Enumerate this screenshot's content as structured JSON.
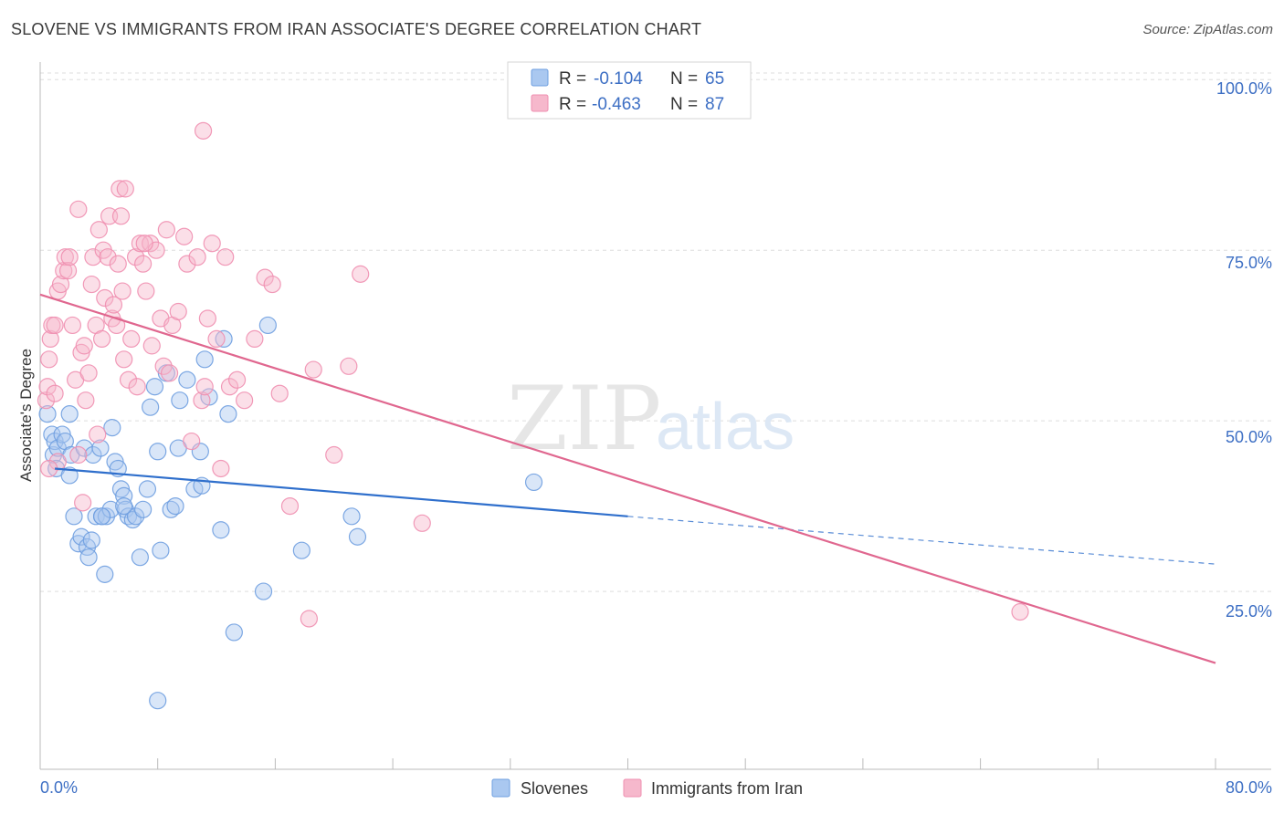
{
  "header": {
    "title": "SLOVENE VS IMMIGRANTS FROM IRAN ASSOCIATE'S DEGREE CORRELATION CHART",
    "source": "Source: ZipAtlas.com"
  },
  "watermark": {
    "zip": "ZIP",
    "atlas": "atlas"
  },
  "legend": {
    "rows": [
      {
        "r_label": "R =",
        "r_value": "-0.104",
        "n_label": "N =",
        "n_value": "65",
        "color": "#aac8f0"
      },
      {
        "r_label": "R =",
        "r_value": "-0.463",
        "n_label": "N =",
        "n_value": "87",
        "color": "#f6b8cc"
      }
    ]
  },
  "bottom_legend": {
    "items": [
      {
        "label": "Slovenes",
        "color": "#aac8f0"
      },
      {
        "label": "Immigrants from Iran",
        "color": "#f6b8cc"
      }
    ]
  },
  "chart_data": {
    "type": "scatter",
    "title": "SLOVENE VS IMMIGRANTS FROM IRAN ASSOCIATE'S DEGREE CORRELATION CHART",
    "xlabel": "",
    "ylabel": "Associate's Degree",
    "xlim": [
      0,
      80
    ],
    "ylim": [
      0,
      100
    ],
    "x_tick_labels": [
      "0.0%",
      "80.0%"
    ],
    "y_tick_labels": [
      "100.0%",
      "75.0%",
      "50.0%",
      "25.0%"
    ],
    "y_ticks": [
      100,
      75,
      50,
      25
    ],
    "grid": true,
    "legend_position": "top-center",
    "series": [
      {
        "name": "Slovenes",
        "color": "#6f9fe0",
        "fill": "#aac8f0",
        "trend": {
          "x0": 1,
          "y0": 43.0,
          "x1": 40,
          "y1": 36.0,
          "dash_to_x": 80,
          "dash_to_y": 29.0,
          "color": "#2f6fcc"
        },
        "points": [
          [
            0.5,
            51
          ],
          [
            0.8,
            48
          ],
          [
            0.9,
            45
          ],
          [
            1.0,
            47
          ],
          [
            1.2,
            46
          ],
          [
            1.5,
            48
          ],
          [
            1.7,
            47
          ],
          [
            2.0,
            51
          ],
          [
            2.1,
            45
          ],
          [
            1.1,
            43
          ],
          [
            2.3,
            36
          ],
          [
            2.6,
            32
          ],
          [
            2.8,
            33
          ],
          [
            3.0,
            46
          ],
          [
            3.2,
            31.5
          ],
          [
            3.3,
            30
          ],
          [
            3.5,
            32.5
          ],
          [
            3.6,
            45
          ],
          [
            3.8,
            36
          ],
          [
            4.1,
            46
          ],
          [
            4.2,
            36
          ],
          [
            4.4,
            27.5
          ],
          [
            4.5,
            36
          ],
          [
            4.8,
            37
          ],
          [
            4.9,
            49
          ],
          [
            5.1,
            44
          ],
          [
            5.3,
            43
          ],
          [
            5.5,
            40
          ],
          [
            5.7,
            39
          ],
          [
            5.8,
            37
          ],
          [
            6.0,
            36
          ],
          [
            6.3,
            35.5
          ],
          [
            6.5,
            36
          ],
          [
            6.8,
            30
          ],
          [
            7.0,
            37
          ],
          [
            7.3,
            40
          ],
          [
            7.5,
            52
          ],
          [
            7.8,
            55
          ],
          [
            8.0,
            45.5
          ],
          [
            8.2,
            31
          ],
          [
            8.6,
            57
          ],
          [
            8.9,
            37
          ],
          [
            9.2,
            37.5
          ],
          [
            9.4,
            46
          ],
          [
            9.5,
            53
          ],
          [
            10.0,
            56
          ],
          [
            10.5,
            40
          ],
          [
            11.0,
            40.5
          ],
          [
            11.2,
            59
          ],
          [
            10.9,
            45.5
          ],
          [
            11.5,
            53.5
          ],
          [
            12.3,
            34
          ],
          [
            12.5,
            62
          ],
          [
            12.8,
            51
          ],
          [
            13.2,
            19
          ],
          [
            15.2,
            25
          ],
          [
            15.5,
            64
          ],
          [
            17.8,
            31
          ],
          [
            21.2,
            36
          ],
          [
            21.6,
            33
          ],
          [
            33.6,
            41
          ],
          [
            8.0,
            9
          ],
          [
            4.2,
            36
          ],
          [
            5.7,
            37.5
          ],
          [
            2.0,
            42
          ]
        ]
      },
      {
        "name": "Immigrants from Iran",
        "color": "#ef8fb0",
        "fill": "#f6b8cc",
        "trend": {
          "x0": 0,
          "y0": 68.5,
          "x1": 80,
          "y1": 14.5,
          "color": "#e0678f"
        },
        "points": [
          [
            0.4,
            53
          ],
          [
            0.5,
            55
          ],
          [
            0.6,
            59
          ],
          [
            0.7,
            62
          ],
          [
            0.8,
            64
          ],
          [
            1.0,
            64
          ],
          [
            1.2,
            69
          ],
          [
            1.4,
            70
          ],
          [
            1.6,
            72
          ],
          [
            1.7,
            74
          ],
          [
            1.9,
            72
          ],
          [
            2.0,
            74
          ],
          [
            2.2,
            64
          ],
          [
            2.4,
            56
          ],
          [
            2.6,
            81
          ],
          [
            2.8,
            60
          ],
          [
            3.0,
            61
          ],
          [
            3.1,
            53
          ],
          [
            3.3,
            57
          ],
          [
            3.5,
            70
          ],
          [
            3.6,
            74
          ],
          [
            3.8,
            64
          ],
          [
            4.0,
            78
          ],
          [
            4.2,
            62
          ],
          [
            4.3,
            75
          ],
          [
            4.4,
            68
          ],
          [
            4.6,
            74
          ],
          [
            4.7,
            80
          ],
          [
            4.9,
            65
          ],
          [
            5.0,
            67
          ],
          [
            5.2,
            64
          ],
          [
            5.3,
            73
          ],
          [
            5.4,
            84
          ],
          [
            5.5,
            80
          ],
          [
            5.6,
            69
          ],
          [
            5.7,
            59
          ],
          [
            5.8,
            84
          ],
          [
            6.0,
            56
          ],
          [
            6.2,
            62
          ],
          [
            6.5,
            74
          ],
          [
            6.8,
            76
          ],
          [
            7.0,
            73
          ],
          [
            7.2,
            69
          ],
          [
            7.5,
            76
          ],
          [
            7.6,
            61
          ],
          [
            7.9,
            75
          ],
          [
            8.2,
            65
          ],
          [
            8.4,
            58
          ],
          [
            8.6,
            78
          ],
          [
            8.8,
            57
          ],
          [
            9.0,
            64
          ],
          [
            9.4,
            66
          ],
          [
            9.8,
            77
          ],
          [
            10.0,
            73
          ],
          [
            10.3,
            47
          ],
          [
            10.7,
            74
          ],
          [
            11.0,
            53
          ],
          [
            11.2,
            55
          ],
          [
            11.4,
            65
          ],
          [
            11.7,
            76
          ],
          [
            12.0,
            62
          ],
          [
            12.3,
            43
          ],
          [
            12.6,
            74
          ],
          [
            12.9,
            55
          ],
          [
            13.4,
            56
          ],
          [
            13.9,
            53
          ],
          [
            14.6,
            62
          ],
          [
            15.3,
            71
          ],
          [
            15.8,
            70
          ],
          [
            16.3,
            54
          ],
          [
            17.0,
            37.5
          ],
          [
            18.3,
            21
          ],
          [
            18.6,
            57.5
          ],
          [
            20.0,
            45
          ],
          [
            21.0,
            58
          ],
          [
            21.8,
            71.5
          ],
          [
            26.0,
            35
          ],
          [
            66.7,
            22
          ],
          [
            11.1,
            92.5
          ],
          [
            1.0,
            54
          ],
          [
            2.6,
            45
          ],
          [
            2.9,
            38
          ],
          [
            1.2,
            44
          ],
          [
            0.6,
            43
          ],
          [
            3.9,
            48
          ],
          [
            6.6,
            55
          ],
          [
            7.1,
            76
          ]
        ]
      }
    ]
  }
}
